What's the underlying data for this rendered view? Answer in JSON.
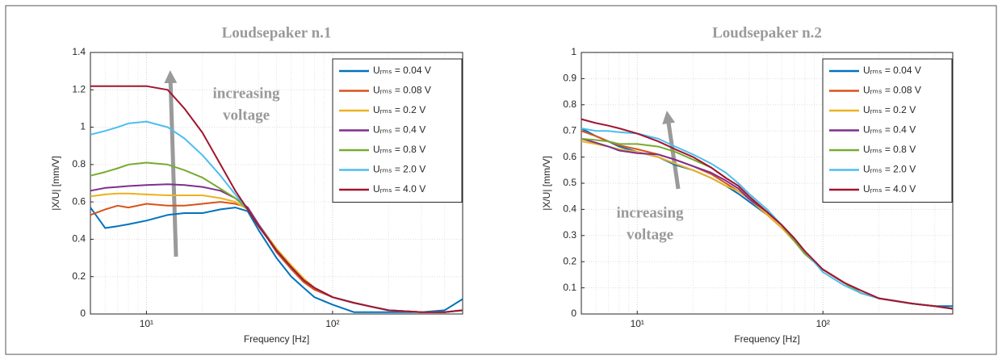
{
  "chart_data": [
    {
      "type": "line",
      "title": "Loudsepaker n.1",
      "xlabel": "Frequency [Hz]",
      "ylabel": "|X/U| [mm/V]",
      "annotation": [
        "increasing",
        "voltage"
      ],
      "xscale": "log",
      "grid": true,
      "legend": "upper right",
      "x": [
        5,
        6,
        7,
        8,
        10,
        13,
        16,
        20,
        25,
        30,
        35,
        40,
        50,
        60,
        70,
        80,
        100,
        130,
        160,
        200,
        300,
        400,
        500
      ],
      "xlim": [
        5,
        500
      ],
      "xticks": [
        {
          "value": 10,
          "label": "10¹"
        },
        {
          "value": 100,
          "label": "10²"
        }
      ],
      "ylim": [
        0,
        1.4
      ],
      "yticks": [
        0,
        0.2,
        0.4,
        0.6,
        0.8,
        1,
        1.2,
        1.4
      ],
      "series": [
        {
          "name": "Uᵣₘₛ = 0.04 V",
          "color": "#0072BD",
          "values": [
            0.57,
            0.46,
            0.47,
            0.48,
            0.5,
            0.53,
            0.54,
            0.54,
            0.56,
            0.57,
            0.55,
            0.45,
            0.3,
            0.2,
            0.14,
            0.09,
            0.05,
            0.01,
            0.01,
            0.01,
            0.01,
            0.02,
            0.08
          ]
        },
        {
          "name": "Uᵣₘₛ = 0.08 V",
          "color": "#D95319",
          "values": [
            0.53,
            0.56,
            0.58,
            0.57,
            0.59,
            0.58,
            0.58,
            0.59,
            0.6,
            0.59,
            0.57,
            0.48,
            0.33,
            0.24,
            0.17,
            0.13,
            0.09,
            0.06,
            0.04,
            0.02,
            0.01,
            0.01,
            0.02
          ]
        },
        {
          "name": "Uᵣₘₛ = 0.2 V",
          "color": "#EDB120",
          "values": [
            0.63,
            0.64,
            0.645,
            0.645,
            0.64,
            0.635,
            0.635,
            0.635,
            0.62,
            0.6,
            0.56,
            0.48,
            0.35,
            0.26,
            0.19,
            0.14,
            0.09,
            0.06,
            0.04,
            0.02,
            0.01,
            0.01,
            0.02
          ]
        },
        {
          "name": "Uᵣₘₛ = 0.4 V",
          "color": "#7E2F8E",
          "values": [
            0.66,
            0.675,
            0.68,
            0.685,
            0.69,
            0.695,
            0.69,
            0.68,
            0.66,
            0.62,
            0.57,
            0.48,
            0.34,
            0.25,
            0.18,
            0.14,
            0.09,
            0.06,
            0.04,
            0.02,
            0.01,
            0.01,
            0.02
          ]
        },
        {
          "name": "Uᵣₘₛ = 0.8 V",
          "color": "#77AC30",
          "values": [
            0.74,
            0.76,
            0.78,
            0.8,
            0.81,
            0.8,
            0.77,
            0.73,
            0.67,
            0.62,
            0.56,
            0.47,
            0.34,
            0.25,
            0.18,
            0.14,
            0.09,
            0.06,
            0.04,
            0.02,
            0.01,
            0.01,
            0.02
          ]
        },
        {
          "name": "Uᵣₘₛ = 2.0 V",
          "color": "#4DBEEE",
          "values": [
            0.96,
            0.98,
            1.0,
            1.02,
            1.03,
            1.0,
            0.94,
            0.85,
            0.74,
            0.64,
            0.56,
            0.47,
            0.34,
            0.25,
            0.18,
            0.14,
            0.09,
            0.06,
            0.04,
            0.02,
            0.01,
            0.01,
            0.02
          ]
        },
        {
          "name": "Uᵣₘₛ = 4.0 V",
          "color": "#A2142F",
          "values": [
            1.22,
            1.22,
            1.22,
            1.22,
            1.22,
            1.2,
            1.1,
            0.97,
            0.8,
            0.66,
            0.56,
            0.47,
            0.34,
            0.25,
            0.18,
            0.14,
            0.09,
            0.06,
            0.04,
            0.02,
            0.01,
            0.01,
            0.02
          ]
        }
      ]
    },
    {
      "type": "line",
      "title": "Loudsepaker n.2",
      "xlabel": "Frequency [Hz]",
      "ylabel": "|X/U| [mm/V]",
      "annotation": [
        "increasing",
        "voltage"
      ],
      "xscale": "log",
      "grid": true,
      "legend": "upper right",
      "x": [
        5,
        6,
        7,
        8,
        10,
        13,
        16,
        20,
        25,
        30,
        35,
        40,
        50,
        60,
        70,
        80,
        100,
        130,
        160,
        200,
        300,
        400,
        500
      ],
      "xlim": [
        5,
        500
      ],
      "xticks": [
        {
          "value": 10,
          "label": "10¹"
        },
        {
          "value": 100,
          "label": "10²"
        }
      ],
      "ylim": [
        0,
        1
      ],
      "yticks": [
        0,
        0.1,
        0.2,
        0.3,
        0.4,
        0.5,
        0.6,
        0.7,
        0.8,
        0.9,
        1
      ],
      "series": [
        {
          "name": "Uᵣₘₛ = 0.04 V",
          "color": "#0072BD",
          "values": [
            0.71,
            0.68,
            0.66,
            0.64,
            0.62,
            0.6,
            0.57,
            0.55,
            0.52,
            0.49,
            0.46,
            0.43,
            0.38,
            0.33,
            0.28,
            0.23,
            0.17,
            0.12,
            0.08,
            0.06,
            0.04,
            0.03,
            0.03
          ]
        },
        {
          "name": "Uᵣₘₛ = 0.08 V",
          "color": "#D95319",
          "values": [
            0.7,
            0.68,
            0.66,
            0.645,
            0.63,
            0.61,
            0.59,
            0.565,
            0.535,
            0.5,
            0.47,
            0.44,
            0.38,
            0.33,
            0.28,
            0.23,
            0.17,
            0.12,
            0.08,
            0.06,
            0.04,
            0.03,
            0.02
          ]
        },
        {
          "name": "Uᵣₘₛ = 0.2 V",
          "color": "#EDB120",
          "values": [
            0.66,
            0.65,
            0.64,
            0.63,
            0.62,
            0.6,
            0.575,
            0.55,
            0.52,
            0.49,
            0.47,
            0.44,
            0.38,
            0.33,
            0.28,
            0.23,
            0.17,
            0.12,
            0.08,
            0.06,
            0.04,
            0.03,
            0.02
          ]
        },
        {
          "name": "Uᵣₘₛ = 0.4 V",
          "color": "#7E2F8E",
          "values": [
            0.67,
            0.655,
            0.64,
            0.625,
            0.615,
            0.61,
            0.59,
            0.565,
            0.54,
            0.51,
            0.48,
            0.44,
            0.39,
            0.34,
            0.28,
            0.23,
            0.17,
            0.12,
            0.08,
            0.06,
            0.04,
            0.03,
            0.02
          ]
        },
        {
          "name": "Uᵣₘₛ = 0.8 V",
          "color": "#77AC30",
          "values": [
            0.67,
            0.665,
            0.66,
            0.65,
            0.65,
            0.64,
            0.62,
            0.59,
            0.56,
            0.52,
            0.49,
            0.45,
            0.39,
            0.34,
            0.28,
            0.23,
            0.17,
            0.12,
            0.08,
            0.06,
            0.04,
            0.03,
            0.02
          ]
        },
        {
          "name": "Uᵣₘₛ = 2.0 V",
          "color": "#4DBEEE",
          "values": [
            0.71,
            0.7,
            0.7,
            0.695,
            0.69,
            0.67,
            0.64,
            0.61,
            0.575,
            0.54,
            0.5,
            0.46,
            0.4,
            0.34,
            0.29,
            0.24,
            0.16,
            0.11,
            0.08,
            0.06,
            0.04,
            0.03,
            0.02
          ]
        },
        {
          "name": "Uᵣₘₛ = 4.0 V",
          "color": "#A2142F",
          "values": [
            0.745,
            0.73,
            0.72,
            0.71,
            0.69,
            0.66,
            0.63,
            0.6,
            0.56,
            0.52,
            0.49,
            0.45,
            0.39,
            0.34,
            0.29,
            0.24,
            0.17,
            0.12,
            0.09,
            0.06,
            0.04,
            0.03,
            0.02
          ]
        }
      ]
    }
  ]
}
